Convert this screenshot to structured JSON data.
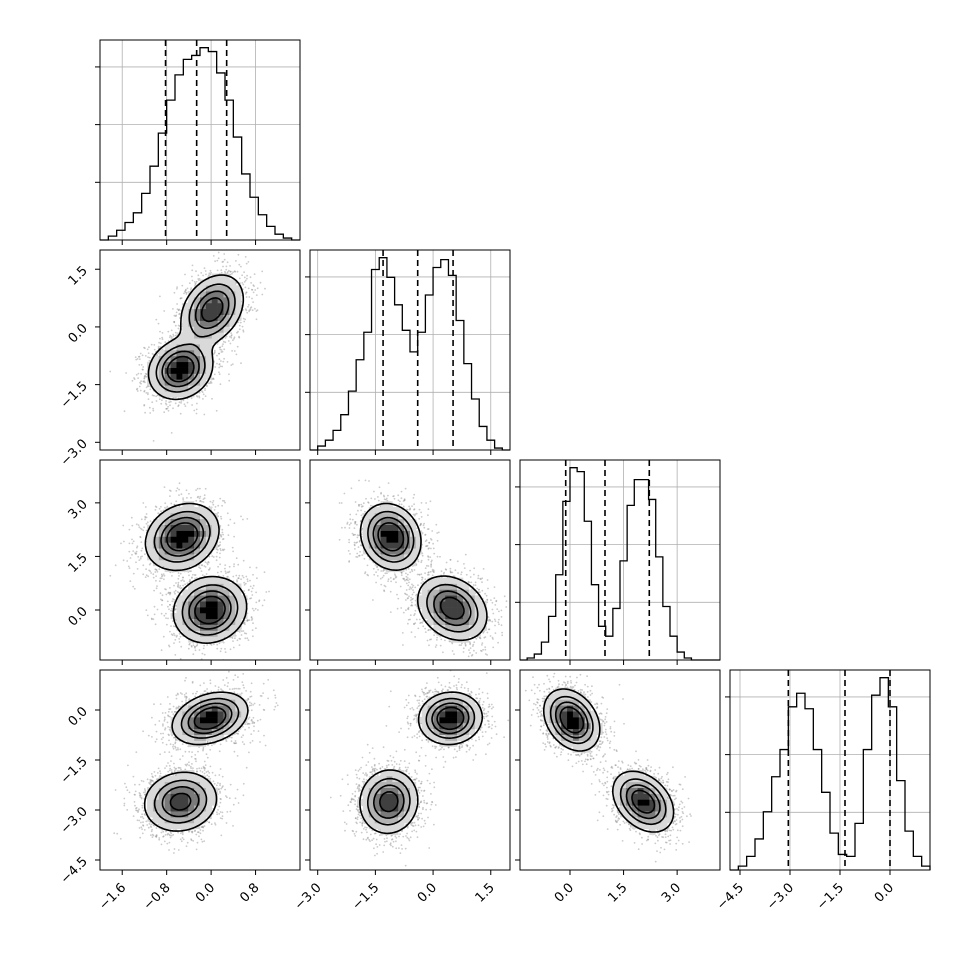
{
  "colors": {
    "hist_line": "#000000",
    "grid": "#b0b0b0",
    "scatter": "#8c8c8c",
    "density_ramp": [
      "#f2f2f2",
      "#d9d9d9",
      "#b3b3b3",
      "#7a7a7a",
      "#404040",
      "#000000"
    ]
  },
  "chart_data": {
    "type": "corner",
    "grid": true,
    "parameters": [
      {
        "axis_range": [
          -2.0,
          1.6
        ],
        "ticks": [
          -1.6,
          -0.8,
          0.0,
          0.8
        ],
        "tick_labels": [
          "−1.6",
          "−0.8",
          "0.0",
          "0.8"
        ]
      },
      {
        "axis_range": [
          -3.2,
          2.0
        ],
        "ticks": [
          -3.0,
          -1.5,
          0.0,
          1.5
        ],
        "tick_labels": [
          "−3.0",
          "−1.5",
          "0.0",
          "1.5"
        ]
      },
      {
        "axis_range": [
          -1.4,
          4.2
        ],
        "ticks": [
          0.0,
          1.5,
          3.0
        ],
        "tick_labels": [
          "0.0",
          "1.5",
          "3.0"
        ]
      },
      {
        "axis_range": [
          -4.8,
          1.2
        ],
        "ticks": [
          -4.5,
          -3.0,
          -1.5,
          0.0
        ],
        "tick_labels": [
          "−4.5",
          "−3.0",
          "−1.5",
          "0.0"
        ]
      }
    ],
    "marginals": [
      {
        "bins_x": [
          -2.0,
          -1.85,
          -1.7,
          -1.55,
          -1.4,
          -1.25,
          -1.1,
          -0.95,
          -0.8,
          -0.65,
          -0.5,
          -0.35,
          -0.2,
          -0.05,
          0.1,
          0.25,
          0.4,
          0.55,
          0.7,
          0.85,
          1.0,
          1.15,
          1.3,
          1.45,
          1.6
        ],
        "counts": [
          0,
          2,
          5,
          9,
          14,
          24,
          38,
          55,
          72,
          85,
          93,
          95,
          99,
          97,
          86,
          72,
          53,
          34,
          22,
          13,
          7,
          3,
          1,
          0
        ],
        "quantiles": [
          -0.82,
          -0.26,
          0.28
        ]
      },
      {
        "bins_x": [
          -3.2,
          -3.0,
          -2.8,
          -2.6,
          -2.4,
          -2.2,
          -2.0,
          -1.8,
          -1.6,
          -1.4,
          -1.2,
          -1.0,
          -0.8,
          -0.6,
          -0.4,
          -0.2,
          0.0,
          0.2,
          0.4,
          0.6,
          0.8,
          1.0,
          1.2,
          1.4,
          1.6,
          1.8,
          2.0
        ],
        "counts": [
          0,
          2,
          5,
          10,
          18,
          30,
          46,
          60,
          92,
          98,
          88,
          74,
          61,
          50,
          60,
          79,
          93,
          97,
          89,
          66,
          44,
          26,
          12,
          5,
          1,
          0
        ],
        "quantiles": [
          -1.3,
          -0.4,
          0.52
        ]
      },
      {
        "bins_x": [
          -1.4,
          -1.2,
          -1.0,
          -0.8,
          -0.6,
          -0.4,
          -0.2,
          0.0,
          0.2,
          0.4,
          0.6,
          0.8,
          1.0,
          1.2,
          1.4,
          1.6,
          1.8,
          2.0,
          2.2,
          2.4,
          2.6,
          2.8,
          3.0,
          3.2,
          3.4,
          3.6,
          3.8,
          4.0,
          4.2
        ],
        "counts": [
          0,
          1,
          3,
          9,
          22,
          43,
          80,
          97,
          95,
          70,
          38,
          17,
          12,
          26,
          50,
          78,
          91,
          91,
          81,
          52,
          27,
          12,
          4,
          1,
          0,
          0,
          0,
          0
        ],
        "quantiles": [
          -0.12,
          0.98,
          2.22
        ]
      },
      {
        "bins_x": [
          -4.8,
          -4.55,
          -4.3,
          -4.05,
          -3.8,
          -3.55,
          -3.3,
          -3.05,
          -2.8,
          -2.55,
          -2.3,
          -2.05,
          -1.8,
          -1.55,
          -1.3,
          -1.05,
          -0.8,
          -0.55,
          -0.3,
          -0.05,
          0.2,
          0.45,
          0.7,
          0.95,
          1.2
        ],
        "counts": [
          0,
          2,
          7,
          16,
          30,
          48,
          62,
          84,
          91,
          83,
          62,
          40,
          19,
          8,
          7,
          24,
          62,
          90,
          99,
          84,
          46,
          20,
          7,
          2
        ],
        "quantiles": [
          -3.05,
          -1.35,
          0.0
        ]
      }
    ],
    "joints": [
      {
        "x_param": 0,
        "y_param": 1,
        "components": [
          {
            "mean": [
              -0.55,
              -1.1
            ],
            "sd": [
              0.28,
              0.38
            ],
            "rho": 0.15,
            "weight": 0.5
          },
          {
            "mean": [
              0.02,
              0.45
            ],
            "sd": [
              0.28,
              0.45
            ],
            "rho": 0.3,
            "weight": 0.5
          }
        ]
      },
      {
        "x_param": 0,
        "y_param": 2,
        "components": [
          {
            "mean": [
              -0.52,
              2.05
            ],
            "sd": [
              0.32,
              0.45
            ],
            "rho": 0.2,
            "weight": 0.5
          },
          {
            "mean": [
              -0.02,
              0.0
            ],
            "sd": [
              0.32,
              0.45
            ],
            "rho": 0.1,
            "weight": 0.5
          }
        ]
      },
      {
        "x_param": 0,
        "y_param": 3,
        "components": [
          {
            "mean": [
              -0.02,
              -0.25
            ],
            "sd": [
              0.33,
              0.38
            ],
            "rho": 0.3,
            "weight": 0.5
          },
          {
            "mean": [
              -0.55,
              -2.75
            ],
            "sd": [
              0.33,
              0.45
            ],
            "rho": 0.1,
            "weight": 0.5
          }
        ]
      },
      {
        "x_param": 1,
        "y_param": 2,
        "components": [
          {
            "mean": [
              -1.1,
              2.05
            ],
            "sd": [
              0.38,
              0.45
            ],
            "rho": -0.15,
            "weight": 0.5
          },
          {
            "mean": [
              0.5,
              0.05
            ],
            "sd": [
              0.45,
              0.45
            ],
            "rho": -0.25,
            "weight": 0.5
          }
        ]
      },
      {
        "x_param": 1,
        "y_param": 3,
        "components": [
          {
            "mean": [
              0.45,
              -0.25
            ],
            "sd": [
              0.4,
              0.38
            ],
            "rho": 0.05,
            "weight": 0.5
          },
          {
            "mean": [
              -1.15,
              -2.75
            ],
            "sd": [
              0.38,
              0.48
            ],
            "rho": 0.05,
            "weight": 0.5
          }
        ]
      },
      {
        "x_param": 2,
        "y_param": 3,
        "components": [
          {
            "mean": [
              0.05,
              -0.3
            ],
            "sd": [
              0.38,
              0.45
            ],
            "rho": -0.3,
            "weight": 0.5
          },
          {
            "mean": [
              2.05,
              -2.75
            ],
            "sd": [
              0.42,
              0.45
            ],
            "rho": -0.35,
            "weight": 0.5
          }
        ]
      }
    ]
  }
}
